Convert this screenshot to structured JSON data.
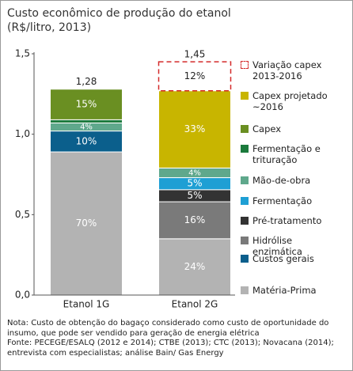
{
  "chart_data": {
    "type": "stacked_bar",
    "title": "Custo econômico de produção do etanol",
    "subtitle": "(R$/litro, 2013)",
    "categories": [
      "Etanol 1G",
      "Etanol 2G"
    ],
    "ylim": [
      0,
      1.5
    ],
    "yticks": [
      {
        "value": 0,
        "label": "0,0"
      },
      {
        "value": 0.5,
        "label": "0,5"
      },
      {
        "value": 1.0,
        "label": "1,0"
      },
      {
        "value": 1.5,
        "label": "1,5"
      }
    ],
    "totals": [
      1.28,
      1.45
    ],
    "total_labels": [
      "1,28",
      "1,45"
    ],
    "series": [
      {
        "name": "Matéria-Prima",
        "color": "#b3b3b3",
        "values": [
          0.89,
          0.35
        ],
        "labels": [
          "70%",
          "24%"
        ]
      },
      {
        "name": "Custos gerais",
        "color": "#0b5f8c",
        "values": [
          0.13,
          null
        ],
        "labels": [
          "10%",
          null
        ]
      },
      {
        "name": "Hidrólise\nenzimática",
        "color": "#7a7a7a",
        "values": [
          null,
          0.23
        ],
        "labels": [
          null,
          "16%"
        ]
      },
      {
        "name": "Pré-tratamento",
        "color": "#333333",
        "values": [
          null,
          0.075
        ],
        "labels": [
          null,
          "5%"
        ]
      },
      {
        "name": "Fermentação",
        "color": "#1e9fd4",
        "values": [
          null,
          0.075
        ],
        "labels": [
          null,
          "5%"
        ]
      },
      {
        "name": "Mão-de-obra",
        "color": "#5fa88c",
        "values": [
          0.05,
          0.06
        ],
        "labels": [
          "4%",
          "4%"
        ]
      },
      {
        "name": "Fermentação e\ntrituração",
        "color": "#1b7a3c",
        "values": [
          0.02,
          null
        ],
        "labels": [
          null,
          null
        ]
      },
      {
        "name": "Capex",
        "color": "#6a8f22",
        "values": [
          0.19,
          null
        ],
        "labels": [
          "15%",
          null
        ]
      },
      {
        "name": "Capex projetado\n~2016",
        "color": "#c8b500",
        "values": [
          null,
          0.48
        ],
        "labels": [
          null,
          "33%"
        ]
      },
      {
        "name": "Variação capex\n2013-2016",
        "color": "#d42a2a",
        "style": "dashed",
        "values": [
          null,
          0.18
        ],
        "labels": [
          null,
          "12%"
        ]
      }
    ],
    "note": "Nota: Custo de obtenção do bagaço considerado como custo de oportunidade do insumo, que pode ser vendido para geração de energia elétrica",
    "source": "Fonte: PECEGE/ESALQ (2012 e 2014); CTBE (2013); CTC (2013); Novacana (2014); entrevista com especialistas; análise Bain/ Gas Energy"
  }
}
